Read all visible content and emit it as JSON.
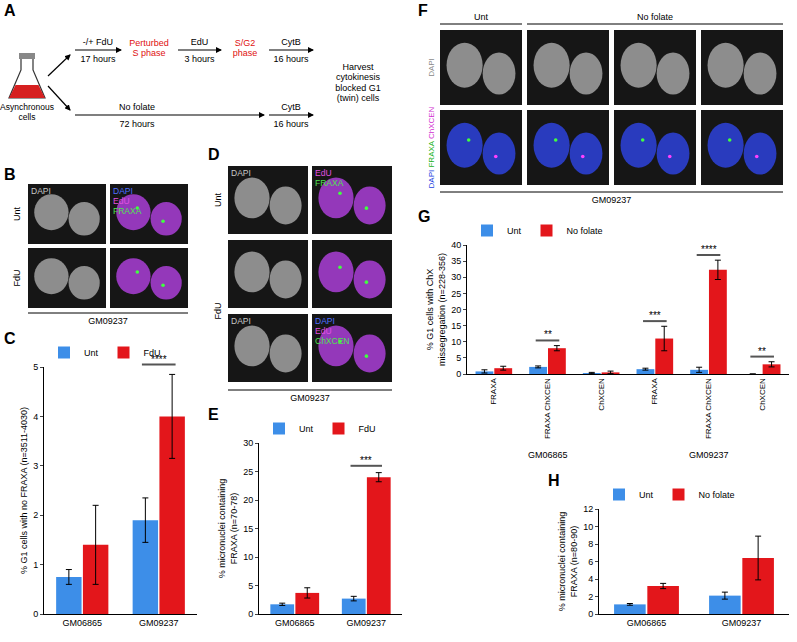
{
  "figure": {
    "A": {
      "letter": "A",
      "start": "Asynchronous cells",
      "row1": {
        "steps": [
          {
            "label": "-/+ FdU",
            "duration": "17 hours"
          },
          {
            "label": "EdU",
            "duration": "3 hours"
          },
          {
            "label": "CytB",
            "duration": "16 hours"
          }
        ],
        "phases": [
          "Perturbed S phase",
          "S/G2 phase"
        ]
      },
      "row2": {
        "steps": [
          {
            "label": "No folate",
            "duration": "72 hours"
          },
          {
            "label": "CytB",
            "duration": "16 hours"
          }
        ]
      },
      "end": "Harvest cytokinesis blocked G1 (twin) cells"
    },
    "B": {
      "letter": "B",
      "rows": [
        "Unt",
        "FdU"
      ],
      "columns": [
        [
          {
            "text": "DAPI",
            "color": "#c8c8c8"
          }
        ],
        [
          {
            "text": "DAPI",
            "color": "#5070ff"
          },
          {
            "text": "EdU",
            "color": "#e050e0"
          },
          {
            "text": "FRAXA",
            "color": "#50e050"
          }
        ]
      ],
      "cell_line": "GM09237"
    },
    "D": {
      "letter": "D",
      "groups": [
        {
          "label": "Unt",
          "image_rows": [
            {
              "left": [
                {
                  "text": "DAPI",
                  "color": "#c8c8c8"
                }
              ],
              "right": [
                {
                  "text": "EdU",
                  "color": "#e050e0"
                },
                {
                  "text": "FRAXA",
                  "color": "#50e050"
                }
              ]
            }
          ]
        },
        {
          "label": "FdU",
          "image_rows": [
            {
              "left": [],
              "right": []
            },
            {
              "left": [
                {
                  "text": "DAPI",
                  "color": "#c8c8c8"
                }
              ],
              "right": [
                {
                  "text": "DAPI",
                  "color": "#5070ff"
                },
                {
                  "text": "EdU",
                  "color": "#e050e0"
                },
                {
                  "text": "ChXCEN",
                  "color": "#50e050"
                }
              ]
            }
          ]
        }
      ],
      "cell_line": "GM09237"
    },
    "F": {
      "letter": "F",
      "column_groups": [
        {
          "label": "Unt",
          "image_columns": 1
        },
        {
          "label": "No folate",
          "image_columns": 3
        }
      ],
      "rows": [
        {
          "channels": [
            {
              "text": "DAPI",
              "color": "#888888"
            }
          ]
        },
        {
          "channels": [
            {
              "text": "DAPI",
              "color": "#2040e0"
            },
            {
              "text": "FRAXA",
              "color": "#20b020"
            },
            {
              "text": "ChXCEN",
              "color": "#d030d0"
            }
          ]
        }
      ],
      "cell_line": "GM09237"
    }
  },
  "chart_data": [
    {
      "letter": "C",
      "type": "bar",
      "y_label": "% G1 cells with no FRAXA (n=3511-4030)",
      "categories": [
        "GM06865",
        "GM09237"
      ],
      "series": [
        {
          "name": "Unt",
          "color": "#3d8ee8",
          "values": [
            0.75,
            1.9
          ],
          "errors": [
            0.15,
            0.45
          ]
        },
        {
          "name": "FdU",
          "color": "#e3161b",
          "values": [
            1.4,
            4.0
          ],
          "errors": [
            0.8,
            0.85
          ]
        }
      ],
      "ylim": [
        0,
        5
      ],
      "yticks": [
        0,
        1,
        2,
        3,
        4,
        5
      ],
      "grid": false,
      "legend": "top",
      "significance": [
        {
          "index": 1,
          "label": "****"
        }
      ]
    },
    {
      "letter": "E",
      "type": "bar",
      "y_label": "% micronuclei containing FRAXA (n=70-78)",
      "categories": [
        "GM06865",
        "GM09237"
      ],
      "series": [
        {
          "name": "Unt",
          "color": "#3d8ee8",
          "values": [
            1.7,
            2.7
          ],
          "errors": [
            0.2,
            0.4
          ]
        },
        {
          "name": "FdU",
          "color": "#e3161b",
          "values": [
            3.7,
            24.0
          ],
          "errors": [
            0.9,
            0.8
          ]
        }
      ],
      "ylim": [
        0,
        30
      ],
      "yticks": [
        0,
        5,
        10,
        15,
        20,
        25,
        30
      ],
      "grid": false,
      "legend": "top",
      "significance": [
        {
          "index": 1,
          "label": "***"
        }
      ]
    },
    {
      "letter": "G",
      "type": "bar",
      "y_label": "% G1 cells with ChX missegregation (n=228-356)",
      "categories": [
        "FRAXA",
        "FRAXA ChXCEN",
        "ChXCEN",
        "FRAXA",
        "FRAXA ChXCEN",
        "ChXCEN"
      ],
      "groups": [
        {
          "label": "GM06865",
          "indices": [
            0,
            1,
            2
          ]
        },
        {
          "label": "GM09237",
          "indices": [
            3,
            4,
            5
          ]
        }
      ],
      "series": [
        {
          "name": "Unt",
          "color": "#3d8ee8",
          "values": [
            0.8,
            2.2,
            0.3,
            1.5,
            1.3,
            0
          ],
          "errors": [
            0.5,
            0.3,
            0.2,
            0.3,
            0.8,
            0
          ]
        },
        {
          "name": "No folate",
          "color": "#e3161b",
          "values": [
            1.8,
            8.0,
            0.5,
            11.0,
            32.3,
            3.0
          ],
          "errors": [
            0.6,
            0.8,
            0.4,
            3.8,
            3.0,
            0.8
          ]
        }
      ],
      "ylim": [
        0,
        40
      ],
      "yticks": [
        0,
        5,
        10,
        15,
        20,
        25,
        30,
        35,
        40
      ],
      "grid": false,
      "legend": "top",
      "significance": [
        {
          "index": 1,
          "label": "**"
        },
        {
          "index": 3,
          "label": "***"
        },
        {
          "index": 4,
          "label": "****"
        },
        {
          "index": 5,
          "label": "**"
        }
      ]
    },
    {
      "letter": "H",
      "type": "bar",
      "y_label": "% micronuclei containing FRAXA (n=80-90)",
      "categories": [
        "GM06865",
        "GM09237"
      ],
      "series": [
        {
          "name": "Unt",
          "color": "#3d8ee8",
          "values": [
            1.1,
            2.1
          ],
          "errors": [
            0.1,
            0.4
          ]
        },
        {
          "name": "No folate",
          "color": "#e3161b",
          "values": [
            3.2,
            6.4
          ],
          "errors": [
            0.3,
            2.5
          ]
        }
      ],
      "ylim": [
        0,
        12
      ],
      "yticks": [
        0,
        2,
        4,
        6,
        8,
        10,
        12
      ],
      "grid": false,
      "legend": "top",
      "significance": []
    }
  ]
}
